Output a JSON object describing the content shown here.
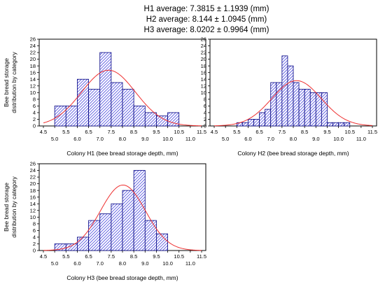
{
  "header": {
    "line1": "H1 average: 7.3815 ± 1.1939 (mm)",
    "line2": "H2 average:  8.144 ± 1.0945 (mm)",
    "line3": "H3 average:  8.0202 ± 0.9964 (mm)"
  },
  "colors": {
    "bar_fill": "#3a3ad0",
    "bar_edge": "#000080",
    "curve": "#ee3030",
    "frame": "#000000"
  },
  "chart_data": [
    {
      "type": "bar",
      "id": "H1",
      "xlabel": "Colony H1 (bee bread storage depth, mm)",
      "ylabel": "Bee bread storage distribution by category",
      "xlim": [
        4.5,
        11.5
      ],
      "ylim": [
        0,
        26
      ],
      "yticks": [
        0,
        2,
        4,
        6,
        8,
        10,
        12,
        14,
        16,
        18,
        20,
        22,
        24,
        26
      ],
      "xticks_upper": [
        "4.5",
        "5.5",
        "6.5",
        "7.5",
        "8.5",
        "9.5",
        "10.5",
        "11.5"
      ],
      "xticks_lower": [
        "5.0",
        "6.0",
        "7.0",
        "8.0",
        "9.0",
        "10.0",
        "11.0"
      ],
      "bin_edges": [
        4.5,
        4.75,
        5.0,
        5.25,
        5.5,
        5.75,
        6.0,
        6.25,
        6.5,
        6.75,
        7.0,
        7.25,
        7.5,
        7.75,
        8.0,
        8.25,
        8.5,
        8.75,
        9.0,
        9.25,
        9.5,
        9.75,
        10.0,
        10.25,
        10.5,
        10.75,
        11.0,
        11.25,
        11.5
      ],
      "bars": [
        {
          "x0": 5.0,
          "x1": 5.5,
          "value": 6
        },
        {
          "x0": 5.5,
          "x1": 6.0,
          "value": 6
        },
        {
          "x0": 6.0,
          "x1": 6.5,
          "value": 14
        },
        {
          "x0": 6.5,
          "x1": 7.0,
          "value": 11
        },
        {
          "x0": 7.0,
          "x1": 7.5,
          "value": 22
        },
        {
          "x0": 7.5,
          "x1": 8.0,
          "value": 13
        },
        {
          "x0": 8.0,
          "x1": 8.5,
          "value": 11
        },
        {
          "x0": 8.5,
          "x1": 9.0,
          "value": 6
        },
        {
          "x0": 9.0,
          "x1": 9.5,
          "value": 4
        },
        {
          "x0": 9.5,
          "x1": 10.0,
          "value": 3
        },
        {
          "x0": 10.0,
          "x1": 10.5,
          "value": 4
        }
      ],
      "normal_curve": {
        "mean": 7.3815,
        "sd": 1.1939
      }
    },
    {
      "type": "bar",
      "id": "H2",
      "xlabel": "Colony H2 (bee bread storage depth, mm)",
      "ylabel": "",
      "xlim": [
        4.5,
        11.5
      ],
      "ylim": [
        0,
        26
      ],
      "yticks": [
        0,
        2,
        4,
        6,
        8,
        10,
        12,
        14,
        16,
        18,
        20,
        22,
        24,
        26
      ],
      "xticks_upper": [
        "4.5",
        "5.5",
        "6.5",
        "7.5",
        "8.5",
        "9.5",
        "10.5",
        "11.5"
      ],
      "xticks_lower": [
        "5.0",
        "6.0",
        "7.0",
        "8.0",
        "9.0",
        "10.0",
        "11.0"
      ],
      "bars": [
        {
          "x0": 5.5,
          "x1": 5.75,
          "value": 1
        },
        {
          "x0": 5.75,
          "x1": 6.0,
          "value": 1
        },
        {
          "x0": 6.0,
          "x1": 6.25,
          "value": 2
        },
        {
          "x0": 6.25,
          "x1": 6.5,
          "value": 2
        },
        {
          "x0": 6.5,
          "x1": 6.75,
          "value": 4
        },
        {
          "x0": 6.75,
          "x1": 7.0,
          "value": 5
        },
        {
          "x0": 7.0,
          "x1": 7.25,
          "value": 13
        },
        {
          "x0": 7.25,
          "x1": 7.5,
          "value": 13
        },
        {
          "x0": 7.5,
          "x1": 7.75,
          "value": 21
        },
        {
          "x0": 7.75,
          "x1": 8.0,
          "value": 18
        },
        {
          "x0": 8.0,
          "x1": 8.25,
          "value": 13
        },
        {
          "x0": 8.25,
          "x1": 8.5,
          "value": 11
        },
        {
          "x0": 8.5,
          "x1": 8.75,
          "value": 11
        },
        {
          "x0": 8.75,
          "x1": 9.0,
          "value": 10
        },
        {
          "x0": 9.0,
          "x1": 9.25,
          "value": 10
        },
        {
          "x0": 9.25,
          "x1": 9.5,
          "value": 10
        },
        {
          "x0": 9.5,
          "x1": 9.75,
          "value": 1
        },
        {
          "x0": 9.75,
          "x1": 10.0,
          "value": 1
        },
        {
          "x0": 10.0,
          "x1": 10.25,
          "value": 1
        },
        {
          "x0": 10.25,
          "x1": 10.5,
          "value": 1
        }
      ],
      "normal_curve": {
        "mean": 8.144,
        "sd": 1.0945
      }
    },
    {
      "type": "bar",
      "id": "H3",
      "xlabel": "Colony H3 (bee bread storage depth, mm)",
      "ylabel": "Bee bread storage distribution by category",
      "xlim": [
        4.5,
        11.5
      ],
      "ylim": [
        0,
        26
      ],
      "yticks": [
        0,
        2,
        4,
        6,
        8,
        10,
        12,
        14,
        16,
        18,
        20,
        22,
        24,
        26
      ],
      "xticks_upper": [
        "4.5",
        "5.5",
        "6.5",
        "7.5",
        "8.5",
        "9.5",
        "10.5",
        "11.5"
      ],
      "xticks_lower": [
        "5.0",
        "6.0",
        "7.0",
        "8.0",
        "9.0",
        "10.0",
        "11.0"
      ],
      "bars": [
        {
          "x0": 5.0,
          "x1": 5.5,
          "value": 2
        },
        {
          "x0": 5.5,
          "x1": 6.0,
          "value": 2
        },
        {
          "x0": 6.0,
          "x1": 6.5,
          "value": 4
        },
        {
          "x0": 6.5,
          "x1": 7.0,
          "value": 9
        },
        {
          "x0": 7.0,
          "x1": 7.5,
          "value": 11
        },
        {
          "x0": 7.5,
          "x1": 8.0,
          "value": 14
        },
        {
          "x0": 8.0,
          "x1": 8.5,
          "value": 18
        },
        {
          "x0": 8.5,
          "x1": 9.0,
          "value": 24
        },
        {
          "x0": 9.0,
          "x1": 9.5,
          "value": 9
        },
        {
          "x0": 9.5,
          "x1": 10.0,
          "value": 5
        }
      ],
      "normal_curve": {
        "mean": 8.0202,
        "sd": 0.9964
      }
    }
  ]
}
